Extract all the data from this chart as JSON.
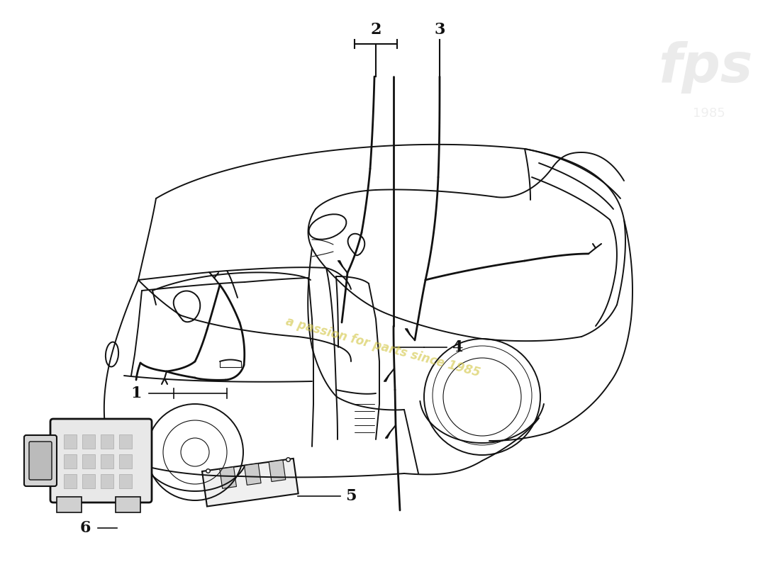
{
  "bg_color": "#ffffff",
  "line_color": "#111111",
  "watermark_text": "a passion for parts since 1985",
  "watermark_color": "#d4c84a",
  "lw": 1.4,
  "lw_thick": 1.8
}
